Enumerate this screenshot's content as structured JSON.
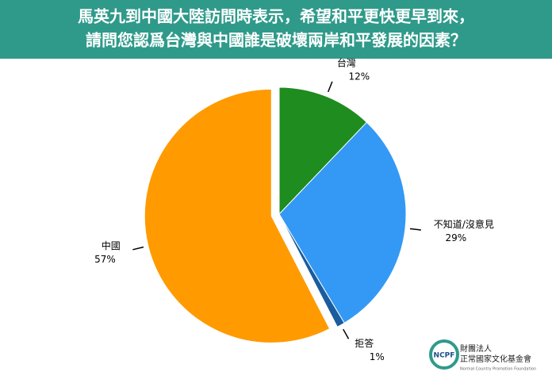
{
  "chart_data": {
    "type": "pie",
    "title": [
      "馬英九到中國大陸訪問時表示，希望和平更快更早到來，",
      "請問您認爲台灣與中國誰是破壞兩岸和平發展的因素？"
    ],
    "categories": [
      "台灣",
      "不知道/沒意見",
      "拒答",
      "中國"
    ],
    "values": [
      12,
      29,
      1,
      57
    ],
    "value_labels": [
      "12%",
      "29%",
      "1%",
      "57%"
    ],
    "colors": [
      "#1e8c1e",
      "#3399f5",
      "#1a5c9e",
      "#ff9a00"
    ],
    "exploded": [
      false,
      false,
      false,
      true
    ]
  },
  "logo": {
    "mark": "NCPF",
    "name_line1": "財團法人",
    "name_line2": "正常國家文化基金會",
    "english": "Normal Country Promotion Foundation"
  }
}
